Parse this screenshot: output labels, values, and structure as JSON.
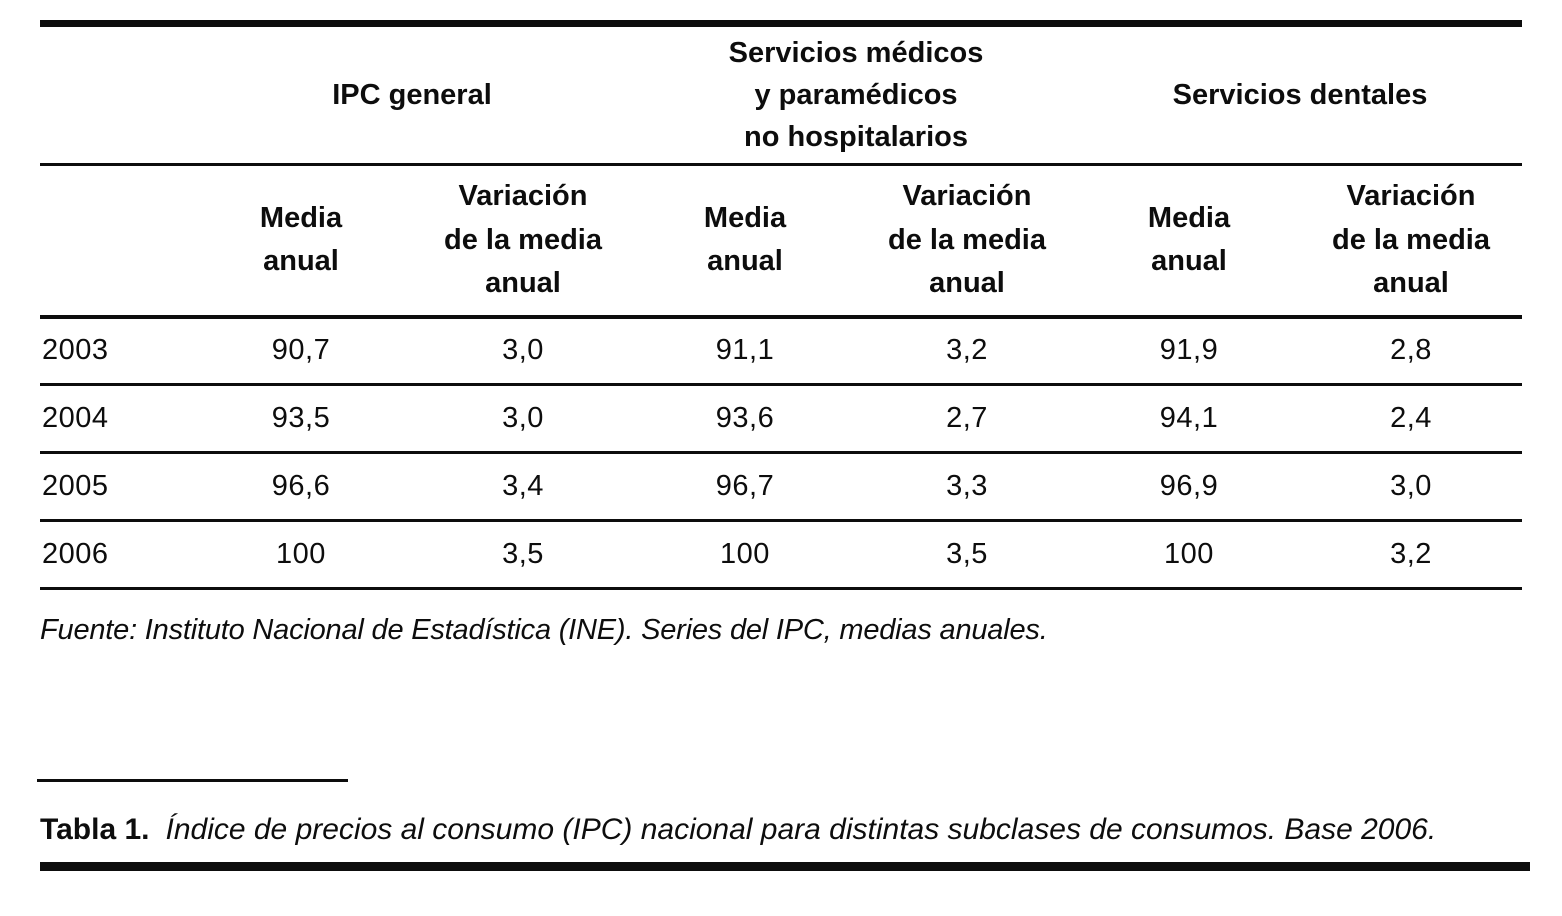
{
  "table": {
    "group_headers": [
      {
        "label": "IPC general"
      },
      {
        "label": "Servicios médicos\ny paramédicos\nno hospitalarios"
      },
      {
        "label": "Servicios dentales"
      }
    ],
    "sub_headers": [
      "Media\nanual",
      "Variación\nde la media\nanual",
      "Media\nanual",
      "Variación\nde la media\nanual",
      "Media\nanual",
      "Variación\nde la media\nanual"
    ],
    "rows": [
      {
        "year": "2003",
        "values": [
          "90,7",
          "3,0",
          "91,1",
          "3,2",
          "91,9",
          "2,8"
        ]
      },
      {
        "year": "2004",
        "values": [
          "93,5",
          "3,0",
          "93,6",
          "2,7",
          "94,1",
          "2,4"
        ]
      },
      {
        "year": "2005",
        "values": [
          "96,6",
          "3,4",
          "96,7",
          "3,3",
          "96,9",
          "3,0"
        ]
      },
      {
        "year": "2006",
        "values": [
          "100",
          "3,5",
          "100",
          "3,5",
          "100",
          "3,2"
        ]
      }
    ]
  },
  "source_note": "Fuente: Instituto Nacional de Estadística (INE). Series del IPC, medias anuales.",
  "caption": {
    "label": "Tabla 1.",
    "text": "Índice de precios al consumo (IPC) nacional para distintas subclases de consumos. Base 2006."
  },
  "colors": {
    "text": "#0d0d0d",
    "rule": "#0d0d0d",
    "background": "#ffffff"
  }
}
